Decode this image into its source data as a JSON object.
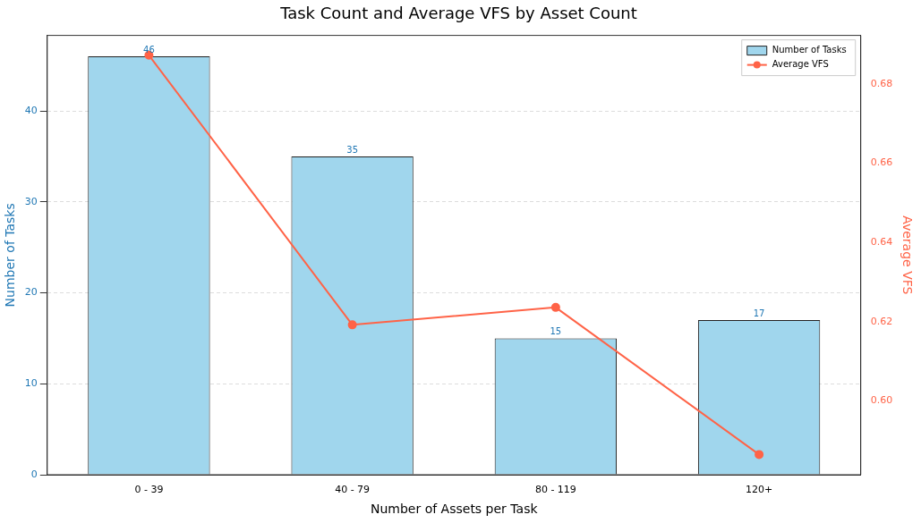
{
  "chart_data": {
    "type": "bar",
    "title": "Task Count and Average VFS by Asset Count",
    "xlabel": "Number of Assets per Task",
    "ylabel": "Number of Tasks",
    "y2label": "Average VFS",
    "categories": [
      "0 - 39",
      "40 - 79",
      "80 - 119",
      "120+"
    ],
    "series": [
      {
        "name": "Number of Tasks",
        "color": "#a0d6ed",
        "values": [
          46,
          35,
          15,
          17
        ],
        "value_labels": [
          "46",
          "35",
          "15",
          "17"
        ]
      },
      {
        "name": "Average VFS",
        "type": "line",
        "axis": "y2",
        "color": "#ff6347",
        "values": [
          0.6872,
          0.6192,
          0.6236,
          0.5865
        ],
        "marker": "circle"
      }
    ],
    "ylim": [
      0,
      48.3
    ],
    "yticks": [
      0,
      10,
      20,
      30,
      40
    ],
    "y2lim": [
      0.5814,
      0.6922
    ],
    "y2ticks": [
      {
        "value": 0.6,
        "label": "0.60"
      },
      0.62,
      0.64,
      0.66,
      0.68
    ],
    "grid": "y",
    "legend": "top right"
  }
}
